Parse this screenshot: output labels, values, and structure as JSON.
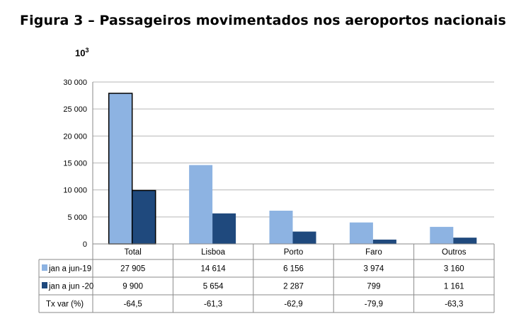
{
  "title": "Figura 3 – Passageiros movimentados nos aeroportos nacionais",
  "unit_base": "10",
  "unit_exp": "3",
  "chart_data": {
    "type": "bar",
    "title": "Figura 3 – Passageiros movimentados nos aeroportos nacionais",
    "ylabel": "10³",
    "ylim": [
      0,
      30000
    ],
    "yticks": [
      "30 000",
      "25 000",
      "20 000",
      "15 000",
      "10 000",
      "5 000",
      "0"
    ],
    "ytick_values": [
      30000,
      25000,
      20000,
      15000,
      10000,
      5000,
      0
    ],
    "categories": [
      "Total",
      "Lisboa",
      "Porto",
      "Faro",
      "Outros"
    ],
    "series": [
      {
        "name": "jan a jun-19",
        "color": "#8db3e2",
        "values": [
          27905,
          14614,
          6156,
          3974,
          3160
        ],
        "labels": [
          "27 905",
          "14 614",
          "6 156",
          "3 974",
          "3 160"
        ]
      },
      {
        "name": "jan a jun -20",
        "color": "#1f497d",
        "values": [
          9900,
          5654,
          2287,
          799,
          1161
        ],
        "labels": [
          "9 900",
          "5 654",
          "2 287",
          "799",
          "1 161"
        ]
      }
    ],
    "table_extra_rows": [
      {
        "name": "Tx var (%)",
        "labels": [
          "-64,5",
          "-61,3",
          "-62,9",
          "-79,9",
          "-63,3"
        ]
      }
    ],
    "grid": true,
    "legend": "table-left"
  }
}
